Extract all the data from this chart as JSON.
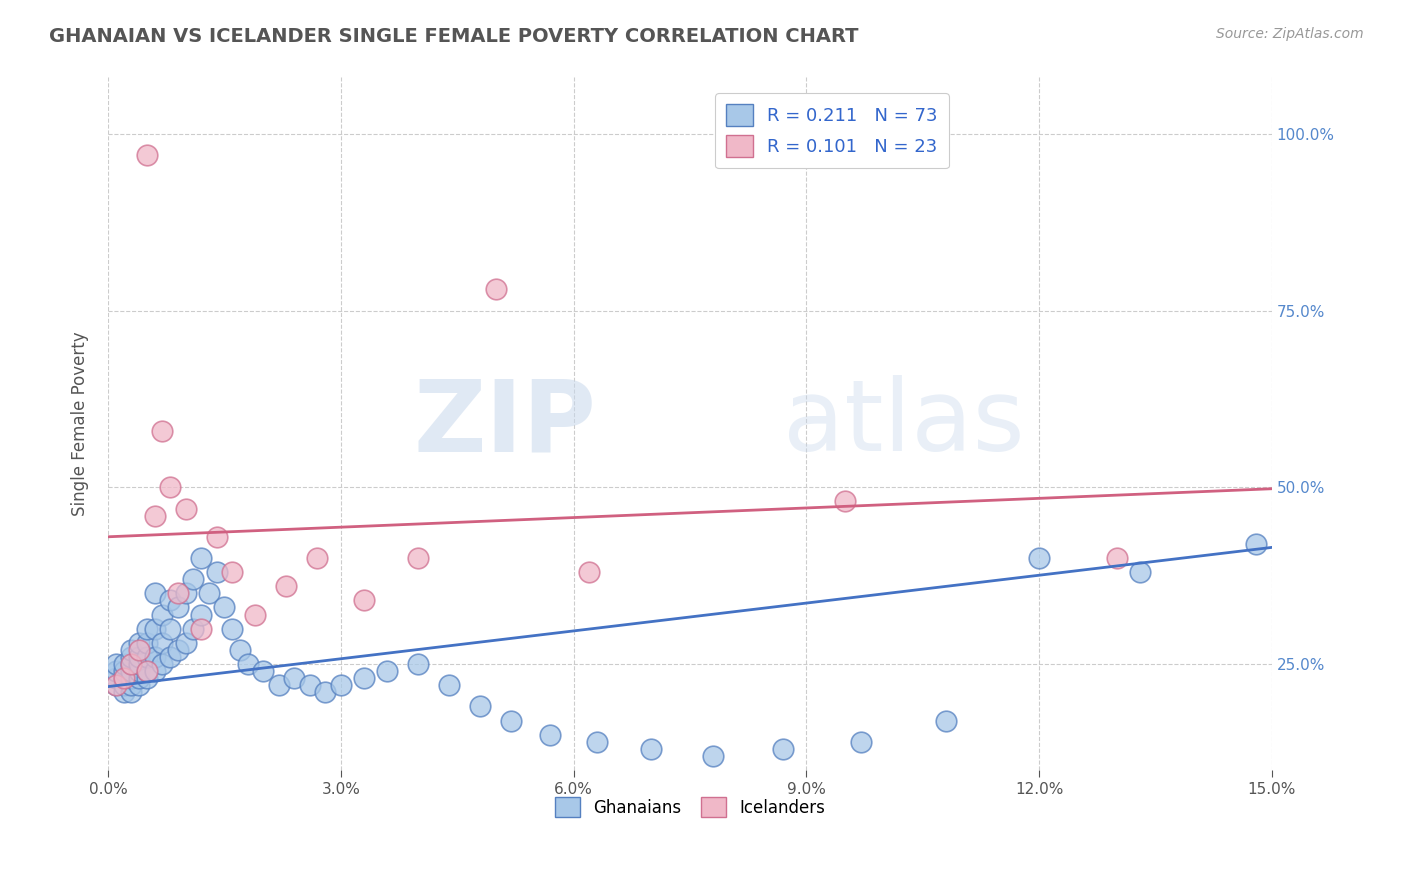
{
  "title": "GHANAIAN VS ICELANDER SINGLE FEMALE POVERTY CORRELATION CHART",
  "source": "Source: ZipAtlas.com",
  "ylabel": "Single Female Poverty",
  "xlim": [
    0.0,
    0.15
  ],
  "ylim": [
    0.1,
    1.08
  ],
  "xticks": [
    0.0,
    0.03,
    0.06,
    0.09,
    0.12,
    0.15
  ],
  "xticklabels": [
    "0.0%",
    "3.0%",
    "6.0%",
    "9.0%",
    "12.0%",
    "15.0%"
  ],
  "yticks": [
    0.25,
    0.5,
    0.75,
    1.0
  ],
  "yticklabels": [
    "25.0%",
    "50.0%",
    "75.0%",
    "100.0%"
  ],
  "watermark_zip": "ZIP",
  "watermark_atlas": "atlas",
  "legend_R1": "R = 0.211",
  "legend_N1": "N = 73",
  "legend_R2": "R = 0.101",
  "legend_N2": "N = 23",
  "blue_color": "#a8c8e8",
  "blue_edge_color": "#5580c0",
  "blue_line_color": "#4472c4",
  "pink_color": "#f0b8c8",
  "pink_edge_color": "#d07090",
  "pink_line_color": "#d06080",
  "blue_scatter_x": [
    0.001,
    0.001,
    0.001,
    0.001,
    0.002,
    0.002,
    0.002,
    0.002,
    0.002,
    0.003,
    0.003,
    0.003,
    0.003,
    0.003,
    0.003,
    0.003,
    0.004,
    0.004,
    0.004,
    0.004,
    0.004,
    0.004,
    0.005,
    0.005,
    0.005,
    0.005,
    0.005,
    0.006,
    0.006,
    0.006,
    0.006,
    0.007,
    0.007,
    0.007,
    0.008,
    0.008,
    0.008,
    0.009,
    0.009,
    0.01,
    0.01,
    0.011,
    0.011,
    0.012,
    0.012,
    0.013,
    0.014,
    0.015,
    0.016,
    0.017,
    0.018,
    0.02,
    0.022,
    0.024,
    0.026,
    0.028,
    0.03,
    0.033,
    0.036,
    0.04,
    0.044,
    0.048,
    0.052,
    0.057,
    0.063,
    0.07,
    0.078,
    0.087,
    0.097,
    0.108,
    0.12,
    0.133,
    0.148
  ],
  "blue_scatter_y": [
    0.22,
    0.23,
    0.24,
    0.25,
    0.21,
    0.22,
    0.23,
    0.24,
    0.25,
    0.21,
    0.22,
    0.23,
    0.24,
    0.25,
    0.26,
    0.27,
    0.22,
    0.23,
    0.24,
    0.25,
    0.26,
    0.28,
    0.23,
    0.24,
    0.26,
    0.28,
    0.3,
    0.24,
    0.26,
    0.3,
    0.35,
    0.25,
    0.28,
    0.32,
    0.26,
    0.3,
    0.34,
    0.27,
    0.33,
    0.28,
    0.35,
    0.3,
    0.37,
    0.32,
    0.4,
    0.35,
    0.38,
    0.33,
    0.3,
    0.27,
    0.25,
    0.24,
    0.22,
    0.23,
    0.22,
    0.21,
    0.22,
    0.23,
    0.24,
    0.25,
    0.22,
    0.19,
    0.17,
    0.15,
    0.14,
    0.13,
    0.12,
    0.13,
    0.14,
    0.17,
    0.4,
    0.38,
    0.42
  ],
  "pink_scatter_x": [
    0.001,
    0.002,
    0.003,
    0.004,
    0.005,
    0.005,
    0.006,
    0.007,
    0.008,
    0.009,
    0.01,
    0.012,
    0.014,
    0.016,
    0.019,
    0.023,
    0.027,
    0.033,
    0.04,
    0.05,
    0.062,
    0.095,
    0.13
  ],
  "pink_scatter_y": [
    0.22,
    0.23,
    0.25,
    0.27,
    0.97,
    0.24,
    0.46,
    0.58,
    0.5,
    0.35,
    0.47,
    0.3,
    0.43,
    0.38,
    0.32,
    0.36,
    0.4,
    0.34,
    0.4,
    0.78,
    0.38,
    0.48,
    0.4
  ],
  "blue_line_x": [
    0.0,
    0.15
  ],
  "blue_line_y": [
    0.218,
    0.415
  ],
  "pink_line_x": [
    0.0,
    0.15
  ],
  "pink_line_y": [
    0.43,
    0.498
  ],
  "bg_color": "#ffffff",
  "grid_color": "#cccccc",
  "title_color": "#555555",
  "source_color": "#999999",
  "label_color": "#555555",
  "right_tick_color": "#5588cc"
}
